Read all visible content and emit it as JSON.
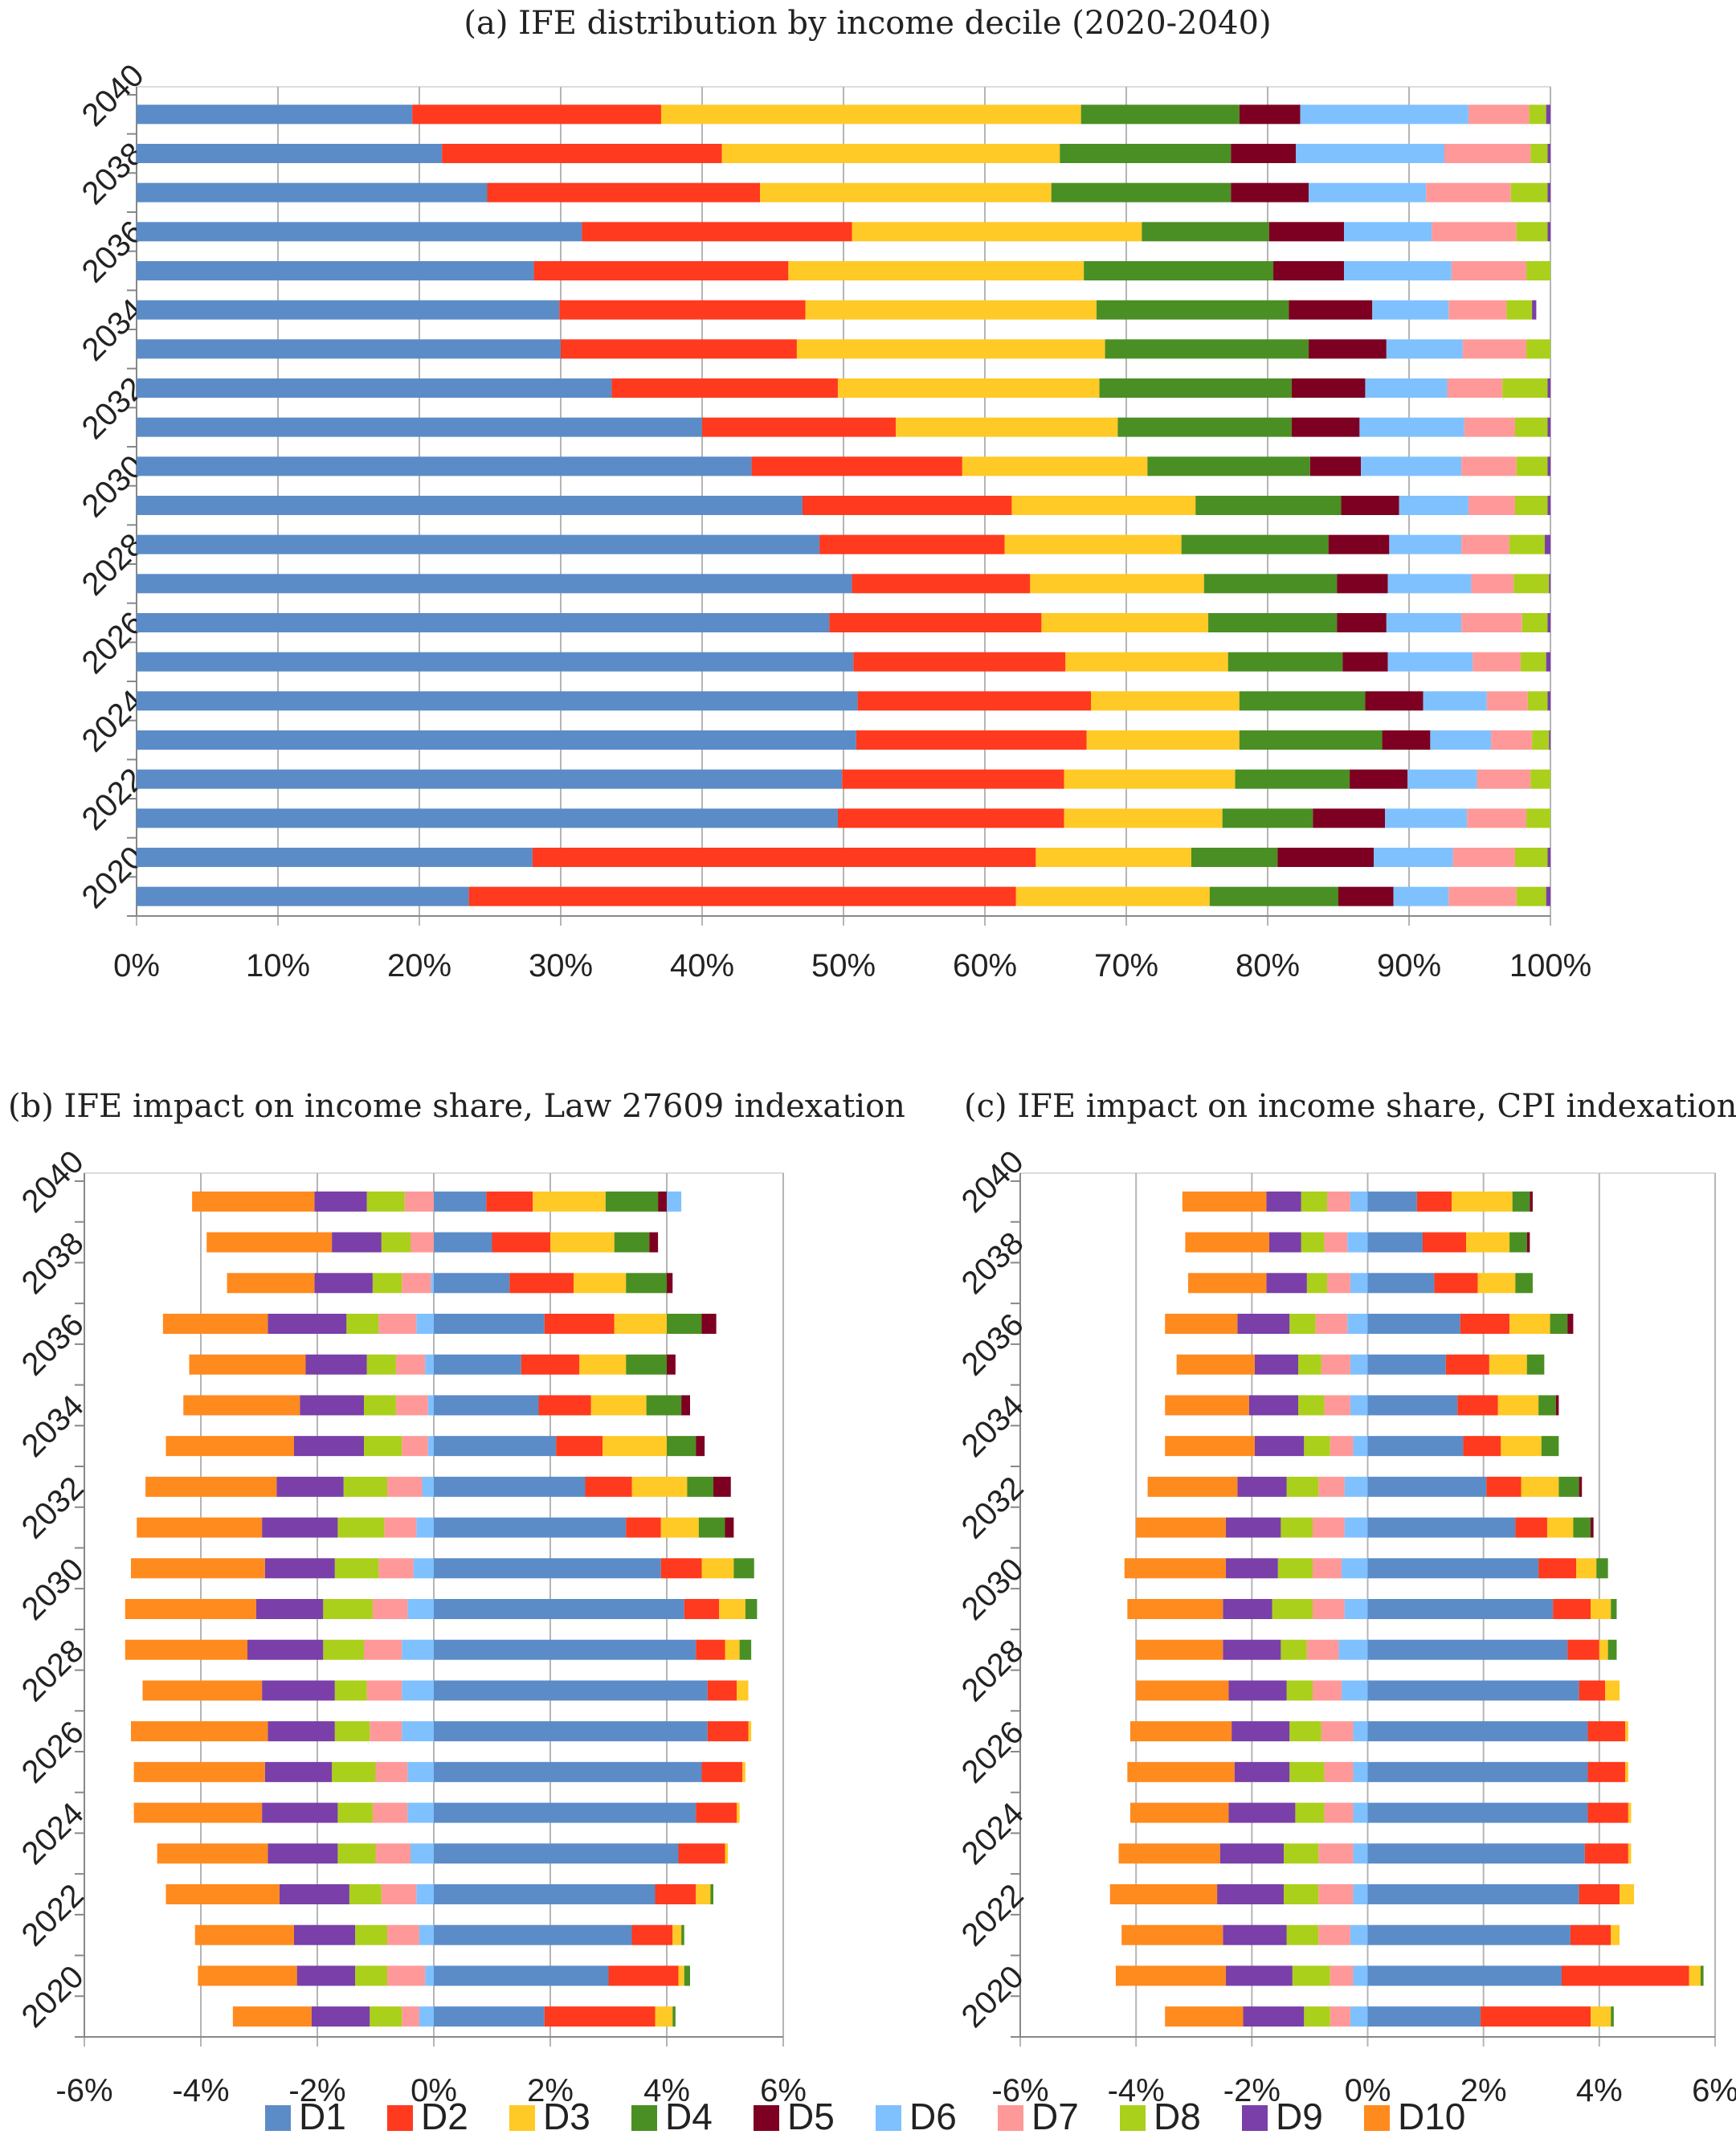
{
  "colors": {
    "D1": "#5b8cc8",
    "D2": "#ff3a1e",
    "D3": "#ffc926",
    "D4": "#4a8f23",
    "D5": "#7d0022",
    "D6": "#7fc1ff",
    "D7": "#ff9999",
    "D8": "#aad01b",
    "D9": "#7a3fa8",
    "D10": "#ff8a1e",
    "grid": "#b5b5b5",
    "axis": "#888888",
    "text": "#222222"
  },
  "legend": {
    "placement": "bottom",
    "items": [
      "D1",
      "D2",
      "D3",
      "D4",
      "D5",
      "D6",
      "D7",
      "D8",
      "D9",
      "D10"
    ]
  },
  "chart_data": [
    {
      "id": "a",
      "type": "bar",
      "stacked": "percent",
      "orientation": "horizontal",
      "title": "(a) IFE distribution by income decile (2020-2040)",
      "xlim": [
        0,
        100
      ],
      "xticks": [
        "0%",
        "10%",
        "20%",
        "30%",
        "40%",
        "50%",
        "60%",
        "70%",
        "80%",
        "90%",
        "100%"
      ],
      "years": [
        2020,
        2021,
        2022,
        2023,
        2024,
        2025,
        2026,
        2027,
        2028,
        2029,
        2030,
        2031,
        2032,
        2033,
        2034,
        2035,
        2036,
        2037,
        2038,
        2039,
        2040
      ],
      "ytick_labels": [
        "2020",
        "2022",
        "2024",
        "2026",
        "2028",
        "2030",
        "2032",
        "2034",
        "2036",
        "2038",
        "2040"
      ],
      "grid": true,
      "series": [
        {
          "name": "D1",
          "values": [
            23.5,
            28.0,
            49.6,
            49.9,
            50.9,
            51.0,
            50.7,
            49.0,
            50.6,
            48.3,
            47.1,
            43.5,
            40.0,
            33.6,
            30.0,
            29.9,
            28.1,
            31.5,
            24.8,
            21.6,
            19.5
          ]
        },
        {
          "name": "D2",
          "values": [
            38.7,
            35.6,
            16.0,
            15.7,
            16.3,
            16.5,
            15.0,
            15.0,
            12.6,
            13.1,
            14.8,
            14.9,
            13.7,
            16.0,
            16.7,
            17.4,
            18.0,
            19.1,
            19.3,
            19.8,
            17.6
          ]
        },
        {
          "name": "D3",
          "values": [
            13.7,
            11.0,
            11.2,
            12.1,
            10.8,
            10.5,
            11.5,
            11.8,
            12.3,
            12.5,
            13.0,
            13.1,
            15.7,
            18.5,
            21.8,
            20.6,
            20.9,
            20.5,
            20.6,
            23.9,
            29.7
          ]
        },
        {
          "name": "D4",
          "values": [
            9.1,
            6.1,
            6.4,
            8.1,
            10.1,
            8.9,
            8.1,
            9.1,
            9.4,
            10.4,
            10.3,
            11.5,
            12.3,
            13.6,
            14.4,
            13.6,
            13.4,
            9.0,
            12.7,
            12.1,
            11.2
          ]
        },
        {
          "name": "D5",
          "values": [
            3.9,
            6.8,
            5.1,
            4.1,
            3.4,
            4.1,
            3.2,
            3.5,
            3.6,
            4.3,
            4.1,
            3.6,
            4.8,
            5.2,
            5.5,
            5.9,
            5.0,
            5.3,
            5.5,
            4.6,
            4.3
          ]
        },
        {
          "name": "D6",
          "values": [
            3.9,
            5.6,
            5.8,
            4.9,
            4.3,
            4.5,
            6.0,
            5.3,
            5.9,
            5.1,
            4.9,
            7.1,
            7.4,
            5.8,
            5.4,
            5.4,
            7.6,
            6.2,
            8.3,
            10.5,
            11.9
          ]
        },
        {
          "name": "D7",
          "values": [
            4.8,
            4.4,
            4.2,
            3.8,
            2.9,
            2.9,
            3.4,
            4.3,
            3.0,
            3.4,
            3.3,
            3.9,
            3.6,
            3.9,
            4.5,
            4.1,
            5.3,
            6.0,
            6.0,
            6.1,
            4.3
          ]
        },
        {
          "name": "D8",
          "values": [
            2.1,
            2.3,
            1.7,
            1.4,
            1.2,
            1.4,
            1.8,
            1.8,
            2.5,
            2.5,
            2.3,
            2.2,
            2.3,
            3.2,
            1.7,
            1.8,
            1.7,
            2.2,
            2.6,
            1.2,
            1.2
          ]
        },
        {
          "name": "D9",
          "values": [
            0.3,
            0.2,
            0.0,
            0.0,
            0.1,
            0.2,
            0.3,
            0.2,
            0.1,
            0.4,
            0.2,
            0.2,
            0.2,
            0.2,
            0.0,
            0.3,
            0.0,
            0.2,
            0.2,
            0.2,
            0.3
          ]
        },
        {
          "name": "D10",
          "values": [
            0.0,
            0.0,
            0.0,
            0.0,
            0.0,
            0.0,
            0.0,
            0.0,
            0.0,
            0.0,
            0.0,
            0.0,
            0.0,
            0.0,
            0.0,
            0.0,
            0.0,
            0.0,
            0.0,
            0.0,
            0.0
          ]
        }
      ]
    },
    {
      "id": "b",
      "type": "bar",
      "stacked": "diverging",
      "orientation": "horizontal",
      "title": "(b) IFE impact on income share, Law 27609 indexation",
      "xlim": [
        -6,
        6
      ],
      "xticks": [
        "-6%",
        "-4%",
        "-2%",
        "0%",
        "2%",
        "4%",
        "6%"
      ],
      "years": [
        2020,
        2021,
        2022,
        2023,
        2024,
        2025,
        2026,
        2027,
        2028,
        2029,
        2030,
        2031,
        2032,
        2033,
        2034,
        2035,
        2036,
        2037,
        2038,
        2039,
        2040
      ],
      "ytick_labels": [
        "2020",
        "2022",
        "2024",
        "2026",
        "2028",
        "2030",
        "2032",
        "2034",
        "2036",
        "2038",
        "2040"
      ],
      "grid": true,
      "series": [
        {
          "name": "D1",
          "values": [
            1.9,
            3.0,
            3.4,
            3.8,
            4.2,
            4.5,
            4.6,
            4.7,
            4.7,
            4.5,
            4.3,
            3.9,
            3.3,
            2.6,
            2.1,
            1.8,
            1.5,
            1.9,
            1.3,
            1.0,
            0.9
          ]
        },
        {
          "name": "D2",
          "values": [
            1.9,
            1.2,
            0.7,
            0.7,
            0.8,
            0.7,
            0.7,
            0.7,
            0.5,
            0.5,
            0.6,
            0.7,
            0.6,
            0.8,
            0.8,
            0.9,
            1.0,
            1.2,
            1.1,
            1.0,
            0.8
          ]
        },
        {
          "name": "D3",
          "values": [
            0.3,
            0.1,
            0.15,
            0.25,
            0.05,
            0.05,
            0.05,
            0.05,
            0.2,
            0.25,
            0.45,
            0.55,
            0.65,
            0.95,
            1.1,
            0.95,
            0.8,
            0.9,
            0.9,
            1.1,
            1.25
          ]
        },
        {
          "name": "D4",
          "values": [
            0.05,
            0.1,
            0.05,
            0.05,
            0.0,
            0.0,
            0.0,
            0.0,
            0.0,
            0.2,
            0.2,
            0.35,
            0.45,
            0.45,
            0.5,
            0.6,
            0.7,
            0.6,
            0.7,
            0.6,
            0.9
          ]
        },
        {
          "name": "D5",
          "values": [
            0.0,
            0.0,
            0.0,
            0.0,
            0.0,
            0.0,
            0.0,
            0.0,
            0.0,
            0.0,
            0.0,
            0.0,
            0.15,
            0.3,
            0.15,
            0.15,
            0.15,
            0.25,
            0.1,
            0.15,
            0.15
          ]
        },
        {
          "name": "D6",
          "values": [
            -0.25,
            -0.15,
            -0.25,
            -0.3,
            -0.4,
            -0.45,
            -0.45,
            -0.55,
            -0.55,
            -0.55,
            -0.45,
            -0.35,
            -0.3,
            -0.2,
            -0.1,
            -0.1,
            -0.15,
            -0.3,
            -0.05,
            0.0,
            0.25
          ]
        },
        {
          "name": "D7",
          "values": [
            -0.3,
            -0.65,
            -0.55,
            -0.6,
            -0.6,
            -0.6,
            -0.55,
            -0.55,
            -0.6,
            -0.65,
            -0.6,
            -0.6,
            -0.55,
            -0.6,
            -0.45,
            -0.55,
            -0.5,
            -0.65,
            -0.5,
            -0.4,
            -0.5
          ]
        },
        {
          "name": "D8",
          "values": [
            -0.55,
            -0.55,
            -0.55,
            -0.55,
            -0.65,
            -0.6,
            -0.75,
            -0.6,
            -0.55,
            -0.7,
            -0.85,
            -0.75,
            -0.8,
            -0.75,
            -0.65,
            -0.55,
            -0.5,
            -0.55,
            -0.5,
            -0.5,
            -0.65
          ]
        },
        {
          "name": "D9",
          "values": [
            -1.0,
            -1.0,
            -1.05,
            -1.2,
            -1.2,
            -1.3,
            -1.15,
            -1.15,
            -1.25,
            -1.3,
            -1.15,
            -1.2,
            -1.3,
            -1.15,
            -1.2,
            -1.1,
            -1.05,
            -1.35,
            -1.0,
            -0.85,
            -0.9
          ]
        },
        {
          "name": "D10",
          "values": [
            -1.35,
            -1.7,
            -1.7,
            -1.95,
            -1.9,
            -2.2,
            -2.25,
            -2.35,
            -2.05,
            -2.1,
            -2.25,
            -2.3,
            -2.15,
            -2.25,
            -2.2,
            -2.0,
            -2.0,
            -1.8,
            -1.5,
            -2.15,
            -2.1
          ]
        }
      ]
    },
    {
      "id": "c",
      "type": "bar",
      "stacked": "diverging",
      "orientation": "horizontal",
      "title": "(c) IFE impact on income share, CPI indexation",
      "xlim": [
        -6,
        6
      ],
      "xticks": [
        "-6%",
        "-4%",
        "-2%",
        "0%",
        "2%",
        "4%",
        "6%"
      ],
      "years": [
        2020,
        2021,
        2022,
        2023,
        2024,
        2025,
        2026,
        2027,
        2028,
        2029,
        2030,
        2031,
        2032,
        2033,
        2034,
        2035,
        2036,
        2037,
        2038,
        2039,
        2040
      ],
      "ytick_labels": [
        "2020",
        "2022",
        "2024",
        "2026",
        "2028",
        "2030",
        "2032",
        "2034",
        "2036",
        "2038",
        "2040"
      ],
      "grid": true,
      "series": [
        {
          "name": "D1",
          "values": [
            1.95,
            3.35,
            3.5,
            3.65,
            3.75,
            3.8,
            3.8,
            3.8,
            3.65,
            3.45,
            3.2,
            2.95,
            2.55,
            2.05,
            1.65,
            1.55,
            1.35,
            1.6,
            1.15,
            0.95,
            0.85
          ]
        },
        {
          "name": "D2",
          "values": [
            1.9,
            2.2,
            0.7,
            0.7,
            0.75,
            0.7,
            0.65,
            0.65,
            0.45,
            0.55,
            0.65,
            0.65,
            0.55,
            0.6,
            0.65,
            0.7,
            0.75,
            0.85,
            0.75,
            0.75,
            0.6
          ]
        },
        {
          "name": "D3",
          "values": [
            0.35,
            0.2,
            0.15,
            0.25,
            0.05,
            0.05,
            0.05,
            0.05,
            0.25,
            0.15,
            0.35,
            0.35,
            0.45,
            0.65,
            0.7,
            0.7,
            0.65,
            0.7,
            0.65,
            0.75,
            1.05
          ]
        },
        {
          "name": "D4",
          "values": [
            0.05,
            0.05,
            0.0,
            0.0,
            0.0,
            0.0,
            0.0,
            0.0,
            0.0,
            0.15,
            0.1,
            0.2,
            0.3,
            0.35,
            0.3,
            0.3,
            0.3,
            0.3,
            0.3,
            0.3,
            0.3
          ]
        },
        {
          "name": "D5",
          "values": [
            0.0,
            0.0,
            0.0,
            0.0,
            0.0,
            0.0,
            0.0,
            0.0,
            0.0,
            0.0,
            0.0,
            0.0,
            0.05,
            0.05,
            0.0,
            0.05,
            0.0,
            0.1,
            0.0,
            0.05,
            0.05
          ]
        },
        {
          "name": "D6",
          "values": [
            -0.3,
            -0.25,
            -0.3,
            -0.25,
            -0.25,
            -0.25,
            -0.25,
            -0.25,
            -0.45,
            -0.5,
            -0.4,
            -0.45,
            -0.4,
            -0.4,
            -0.25,
            -0.3,
            -0.3,
            -0.35,
            -0.3,
            -0.35,
            -0.3
          ]
        },
        {
          "name": "D7",
          "values": [
            -0.35,
            -0.4,
            -0.55,
            -0.6,
            -0.6,
            -0.5,
            -0.5,
            -0.55,
            -0.5,
            -0.55,
            -0.55,
            -0.5,
            -0.55,
            -0.45,
            -0.4,
            -0.45,
            -0.5,
            -0.55,
            -0.4,
            -0.4,
            -0.4
          ]
        },
        {
          "name": "D8",
          "values": [
            -0.45,
            -0.65,
            -0.55,
            -0.6,
            -0.6,
            -0.5,
            -0.6,
            -0.55,
            -0.45,
            -0.45,
            -0.7,
            -0.6,
            -0.55,
            -0.55,
            -0.45,
            -0.45,
            -0.4,
            -0.45,
            -0.35,
            -0.4,
            -0.45
          ]
        },
        {
          "name": "D9",
          "values": [
            -1.05,
            -1.15,
            -1.1,
            -1.15,
            -1.1,
            -1.15,
            -0.95,
            -1.0,
            -1.0,
            -1.0,
            -0.85,
            -0.9,
            -0.95,
            -0.85,
            -0.85,
            -0.85,
            -0.75,
            -0.9,
            -0.7,
            -0.55,
            -0.6
          ]
        },
        {
          "name": "D10",
          "values": [
            -1.35,
            -1.9,
            -1.75,
            -1.85,
            -1.75,
            -1.7,
            -1.85,
            -1.75,
            -1.6,
            -1.5,
            -1.65,
            -1.75,
            -1.55,
            -1.55,
            -1.55,
            -1.45,
            -1.35,
            -1.25,
            -1.35,
            -1.45,
            -1.45
          ]
        }
      ]
    }
  ]
}
